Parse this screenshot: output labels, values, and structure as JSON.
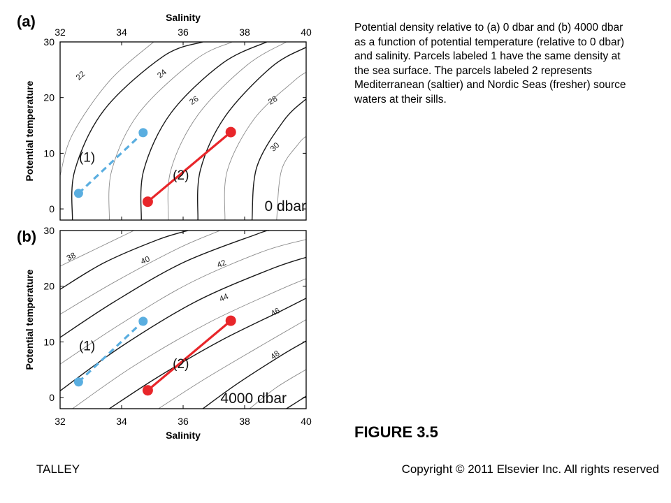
{
  "caption": "Potential density relative to (a) 0 dbar and (b) 4000 dbar as a function of potential temperature (relative to 0 dbar) and salinity. Parcels labeled 1 have the same density at the sea surface. The parcels labeled 2 represents Mediterranean (saltier) and Nordic Seas (fresher) source waters at their sills.",
  "figure_title": "FIGURE 3.5",
  "footer": {
    "left": "TALLEY",
    "right": "Copyright © 2011 Elsevier Inc. All rights reserved"
  },
  "colors": {
    "parcel1": "#5aaee0",
    "parcel2": "#e8262a",
    "contour_major": "#1a1a1a",
    "contour_minor": "#8c8c8c"
  },
  "chart_data": [
    {
      "type": "line",
      "panel_label": "(a)",
      "xlabel": "Salinity",
      "ylabel": "Potential temperature",
      "xlim": [
        32,
        40
      ],
      "ylim": [
        -2,
        30
      ],
      "xticks": [
        32,
        34,
        36,
        38,
        40
      ],
      "yticks": [
        0,
        10,
        20,
        30
      ],
      "xaxis_position": "top",
      "annotation": "0 dbar",
      "contour_labels": [
        "22",
        "24",
        "26",
        "28",
        "30"
      ],
      "series": [
        {
          "name": "(1)",
          "x": [
            32.6,
            34.7
          ],
          "y": [
            2.8,
            13.7
          ],
          "style": "dashed",
          "color": "#5aaee0"
        },
        {
          "name": "(2)",
          "x": [
            34.85,
            37.55
          ],
          "y": [
            1.3,
            13.8
          ],
          "style": "solid",
          "color": "#e8262a"
        }
      ]
    },
    {
      "type": "line",
      "panel_label": "(b)",
      "xlabel": "Salinity",
      "ylabel": "Potential temperature",
      "xlim": [
        32,
        40
      ],
      "ylim": [
        -2,
        30
      ],
      "xticks": [
        32,
        34,
        36,
        38,
        40
      ],
      "yticks": [
        0,
        10,
        20,
        30
      ],
      "xaxis_position": "bottom",
      "annotation": "4000 dbar",
      "contour_labels": [
        "38",
        "40",
        "42",
        "44",
        "46",
        "48"
      ],
      "series": [
        {
          "name": "(1)",
          "x": [
            32.6,
            34.7
          ],
          "y": [
            2.8,
            13.7
          ],
          "style": "dashed",
          "color": "#5aaee0"
        },
        {
          "name": "(2)",
          "x": [
            34.85,
            37.55
          ],
          "y": [
            1.3,
            13.8
          ],
          "style": "solid",
          "color": "#e8262a"
        }
      ]
    }
  ]
}
